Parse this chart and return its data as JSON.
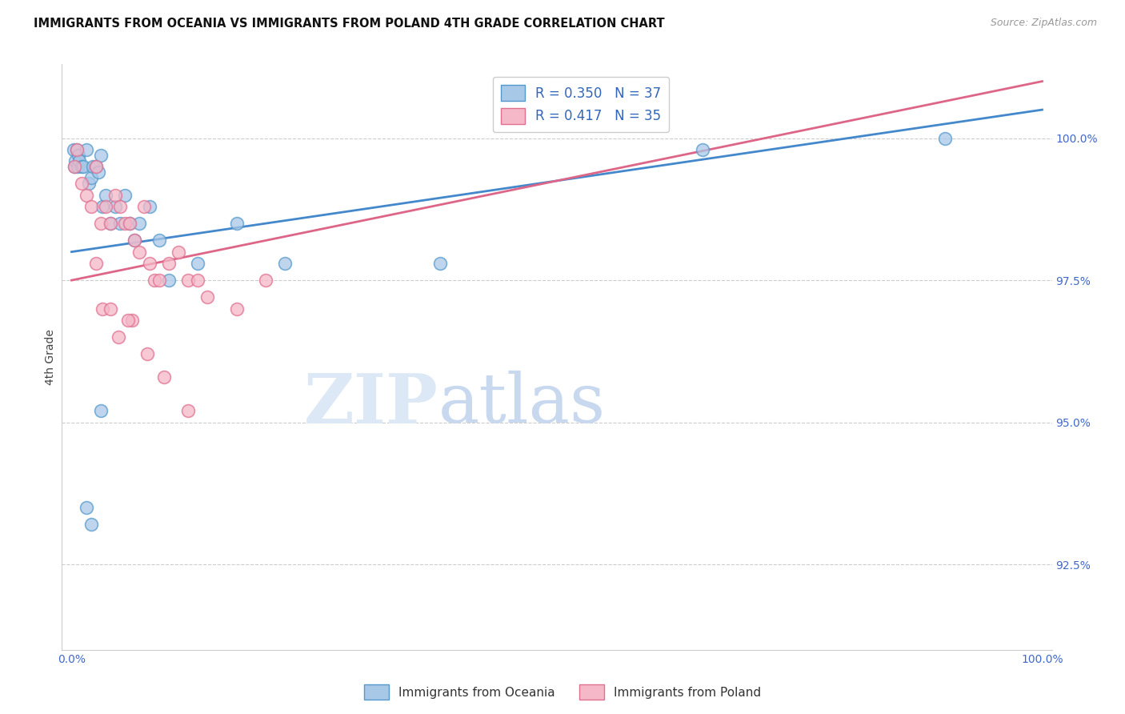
{
  "title": "IMMIGRANTS FROM OCEANIA VS IMMIGRANTS FROM POLAND 4TH GRADE CORRELATION CHART",
  "source": "Source: ZipAtlas.com",
  "ylabel": "4th Grade",
  "xlim": [
    -1,
    101
  ],
  "ylim": [
    91.0,
    101.3
  ],
  "xticks": [
    0,
    20,
    40,
    60,
    80,
    100
  ],
  "xticklabels": [
    "0.0%",
    "",
    "",
    "",
    "",
    "100.0%"
  ],
  "yticks": [
    92.5,
    95.0,
    97.5,
    100.0
  ],
  "yticklabels": [
    "92.5%",
    "95.0%",
    "97.5%",
    "100.0%"
  ],
  "legend_r_blue": "R = 0.350",
  "legend_n_blue": "N = 37",
  "legend_r_pink": "R = 0.417",
  "legend_n_pink": "N = 35",
  "blue_face_color": "#a8c8e8",
  "blue_edge_color": "#5599cc",
  "pink_face_color": "#f4b8c8",
  "pink_edge_color": "#e07090",
  "blue_line_color": "#4488cc",
  "pink_line_color": "#dd6688",
  "watermark_color": "#dce8f5",
  "legend_label_blue": "Immigrants from Oceania",
  "legend_label_pink": "Immigrants from Poland",
  "blue_x": [
    0.2,
    0.3,
    0.4,
    0.5,
    0.6,
    0.7,
    0.8,
    1.0,
    1.2,
    1.5,
    1.8,
    2.0,
    2.2,
    2.5,
    2.8,
    3.0,
    3.2,
    3.5,
    4.0,
    4.5,
    5.0,
    5.5,
    6.0,
    6.5,
    7.0,
    8.0,
    9.0,
    10.0,
    13.0,
    17.0,
    22.0,
    38.0,
    65.0,
    90.0,
    1.5,
    2.0,
    3.0
  ],
  "blue_y": [
    99.8,
    99.5,
    99.6,
    99.8,
    99.5,
    99.7,
    99.6,
    99.5,
    99.5,
    99.8,
    99.2,
    99.3,
    99.5,
    99.5,
    99.4,
    99.7,
    98.8,
    99.0,
    98.5,
    98.8,
    98.5,
    99.0,
    98.5,
    98.2,
    98.5,
    98.8,
    98.2,
    97.5,
    97.8,
    98.5,
    97.8,
    97.8,
    99.8,
    100.0,
    93.5,
    93.2,
    95.2
  ],
  "pink_x": [
    0.3,
    0.5,
    1.0,
    1.5,
    2.0,
    2.5,
    3.0,
    3.5,
    4.0,
    4.5,
    5.0,
    5.5,
    6.0,
    6.5,
    7.0,
    7.5,
    8.0,
    8.5,
    9.0,
    10.0,
    11.0,
    12.0,
    13.0,
    14.0,
    17.0,
    20.0,
    3.2,
    4.8,
    6.2,
    7.8,
    9.5,
    2.5,
    4.0,
    5.8,
    12.0
  ],
  "pink_y": [
    99.5,
    99.8,
    99.2,
    99.0,
    98.8,
    99.5,
    98.5,
    98.8,
    98.5,
    99.0,
    98.8,
    98.5,
    98.5,
    98.2,
    98.0,
    98.8,
    97.8,
    97.5,
    97.5,
    97.8,
    98.0,
    97.5,
    97.5,
    97.2,
    97.0,
    97.5,
    97.0,
    96.5,
    96.8,
    96.2,
    95.8,
    97.8,
    97.0,
    96.8,
    95.2
  ],
  "blue_trend_x": [
    0,
    100
  ],
  "blue_trend_y": [
    98.0,
    100.5
  ],
  "pink_trend_x": [
    0,
    100
  ],
  "pink_trend_y": [
    97.5,
    101.0
  ]
}
